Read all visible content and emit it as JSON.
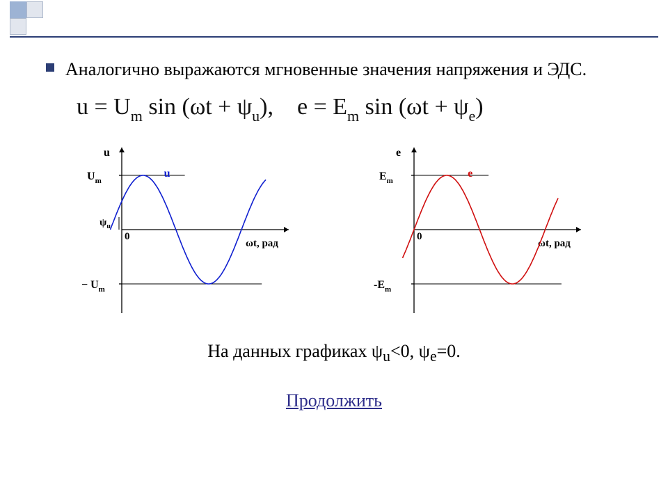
{
  "intro_text": "Аналогично выражаются мгновенные значения напряжения и ЭДС.",
  "equations_html": "u = U<sub class='sub'>m</sub> sin (ωt + ψ<sub class='sub'>u</sub>),&nbsp;&nbsp;&nbsp;&nbsp;e = E<sub class='sub'>m</sub> sin (ωt + ψ<sub class='sub'>e</sub>)",
  "caption_html": "На данных графиках ψ<sub class='sub'>u</sub>&lt;0, ψ<sub class='sub'>e</sub>=0.",
  "continue_label": "Продолжить",
  "colors": {
    "accent": "#2c3e75",
    "curve_u": "#1020d0",
    "curve_e": "#d01010",
    "axis": "#000000"
  },
  "chart_u": {
    "type": "line",
    "y_axis_label": "u",
    "x_axis_label": "ωt, рад",
    "y_tick_pos_label": "U",
    "y_tick_pos_sub": "m",
    "y_tick_neg_label": "− U",
    "y_tick_neg_sub": "m",
    "origin_label": "0",
    "phase_label": "ψ",
    "phase_sub": "u",
    "curve_label": "u",
    "curve_color": "#1020d0",
    "amplitude": 1.0,
    "phase_rad": 0.55,
    "x_range_rad": [
      -0.55,
      6.9
    ],
    "ylim": [
      -1.25,
      1.25
    ],
    "background_color": "#ffffff",
    "line_width": 1.6
  },
  "chart_e": {
    "type": "line",
    "y_axis_label": "e",
    "x_axis_label": "ωt, рад",
    "y_tick_pos_label": "E",
    "y_tick_pos_sub": "m",
    "y_tick_neg_label": "-E",
    "y_tick_neg_sub": "m",
    "origin_label": "0",
    "curve_label": "e",
    "curve_color": "#d01010",
    "amplitude": 1.0,
    "phase_rad": 0.0,
    "x_range_rad": [
      -0.55,
      6.9
    ],
    "ylim": [
      -1.25,
      1.25
    ],
    "background_color": "#ffffff",
    "line_width": 1.6
  }
}
